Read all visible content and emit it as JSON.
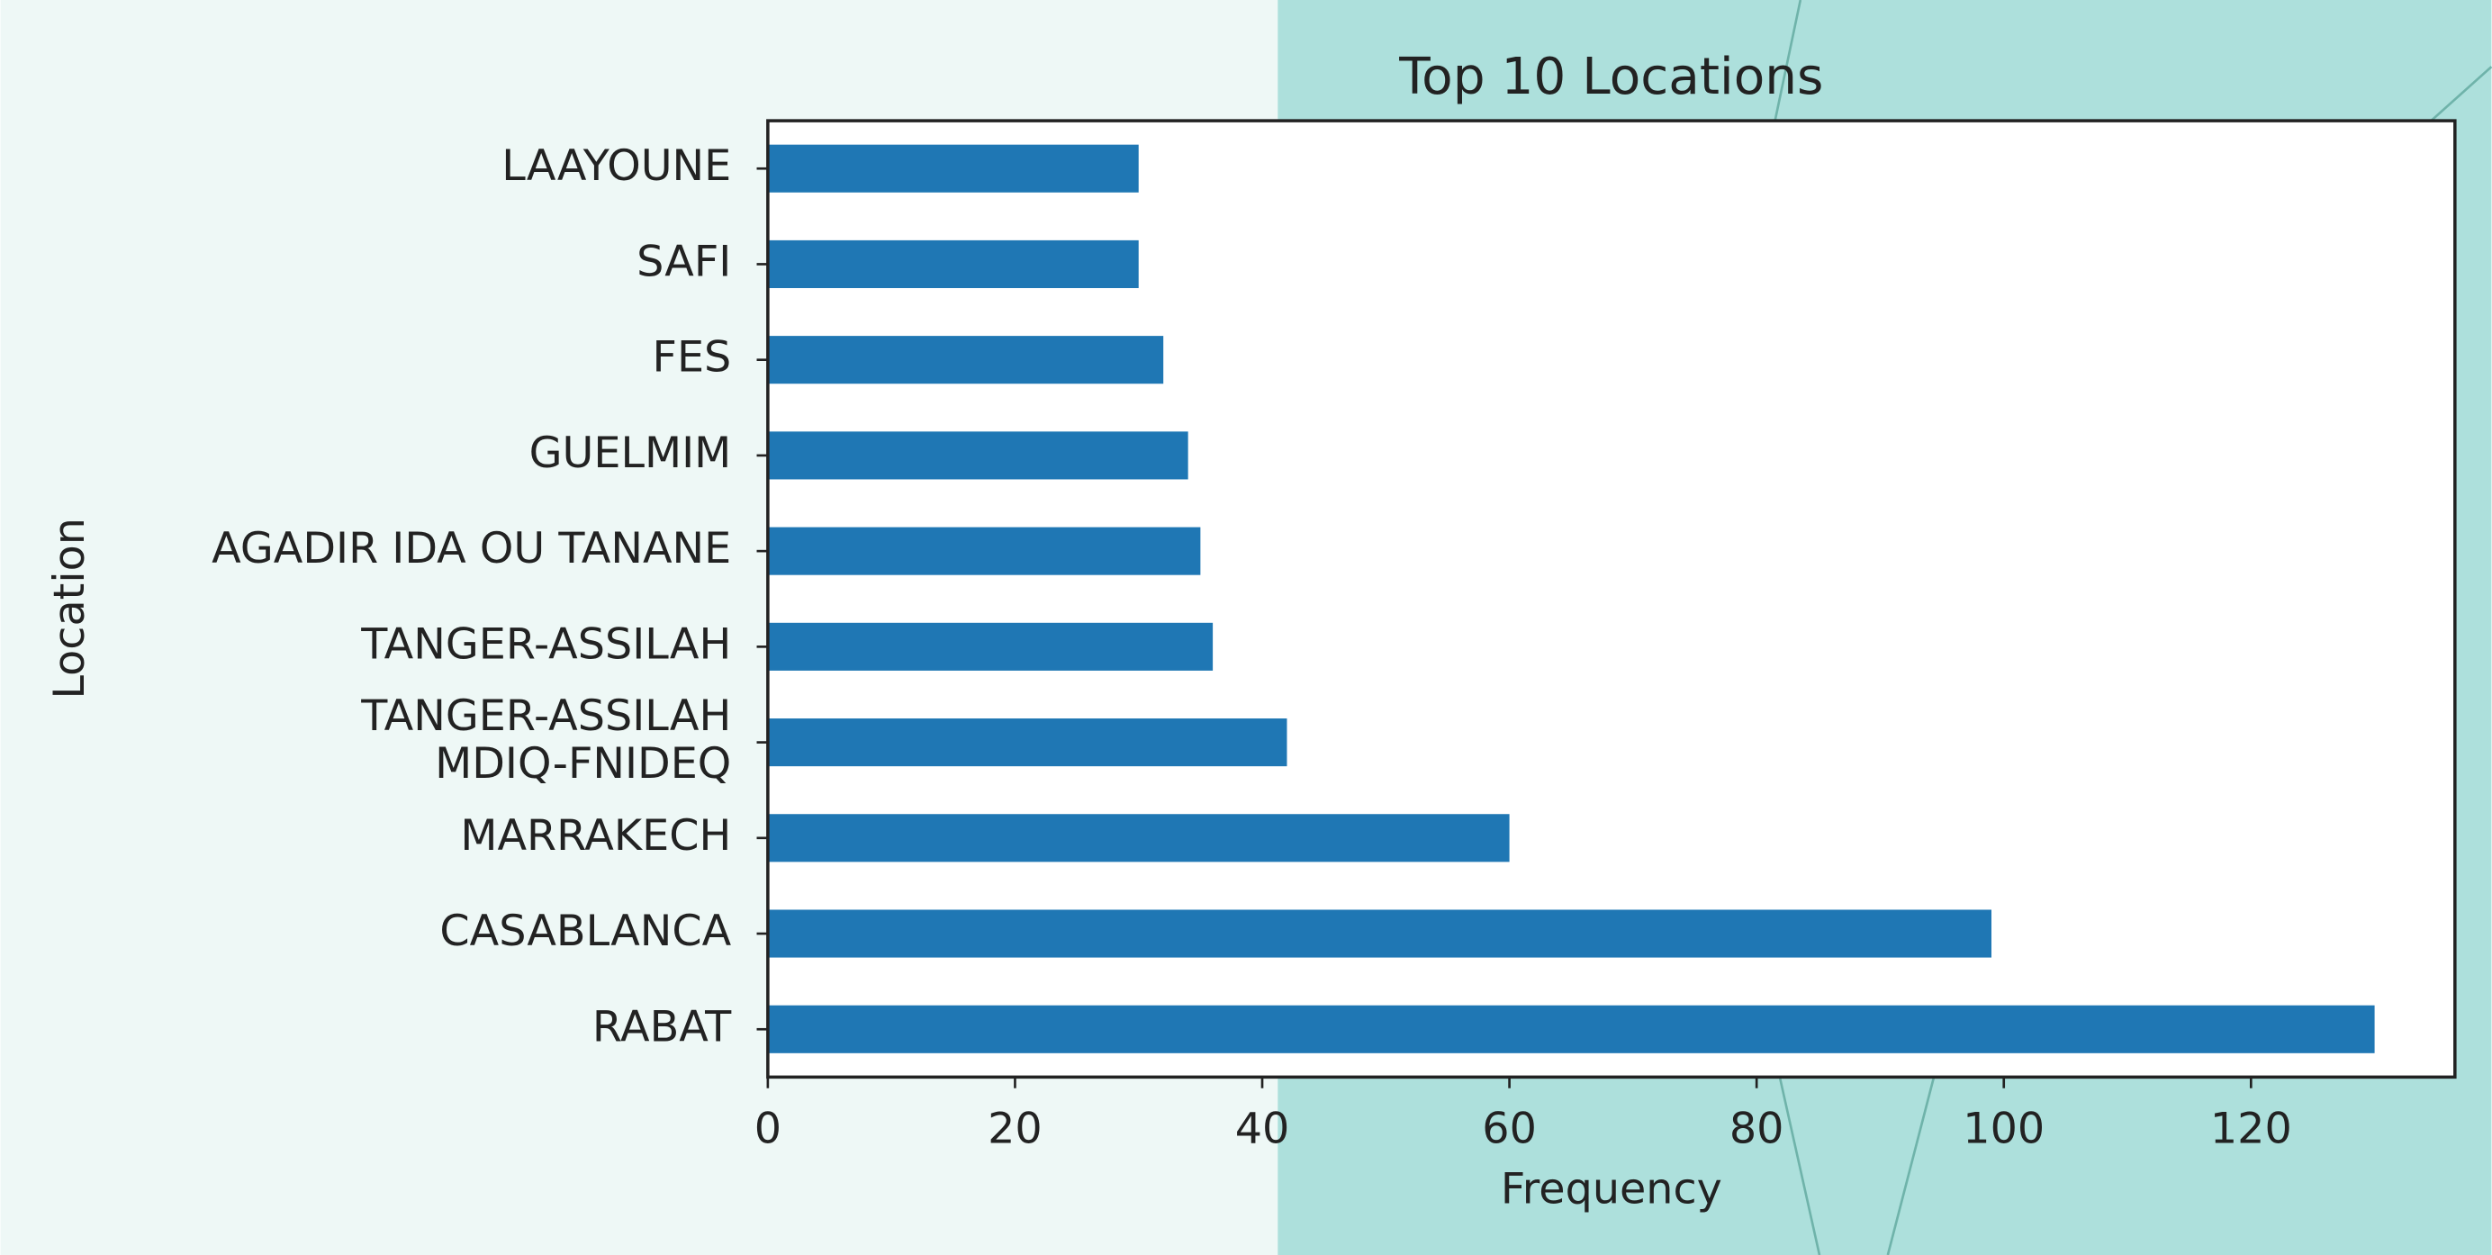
{
  "chart_data": {
    "type": "barh",
    "title": "Top 10 Locations",
    "xlabel": "Frequency",
    "ylabel": "Location",
    "categories": [
      "RABAT",
      "CASABLANCA",
      "MARRAKECH",
      "TANGER-ASSILAH\nMDIQ-FNIDEQ",
      "TANGER-ASSILAH",
      "AGADIR IDA OU TANANE",
      "GUELMIM",
      "FES",
      "SAFI",
      "LAAYOUNE"
    ],
    "values": [
      130,
      99,
      60,
      42,
      36,
      35,
      34,
      32,
      30,
      30
    ],
    "color": "#1f77b4",
    "xlim": [
      0,
      136.5
    ],
    "xticks": [
      0,
      20,
      40,
      60,
      80,
      100,
      120
    ],
    "grid": false
  }
}
